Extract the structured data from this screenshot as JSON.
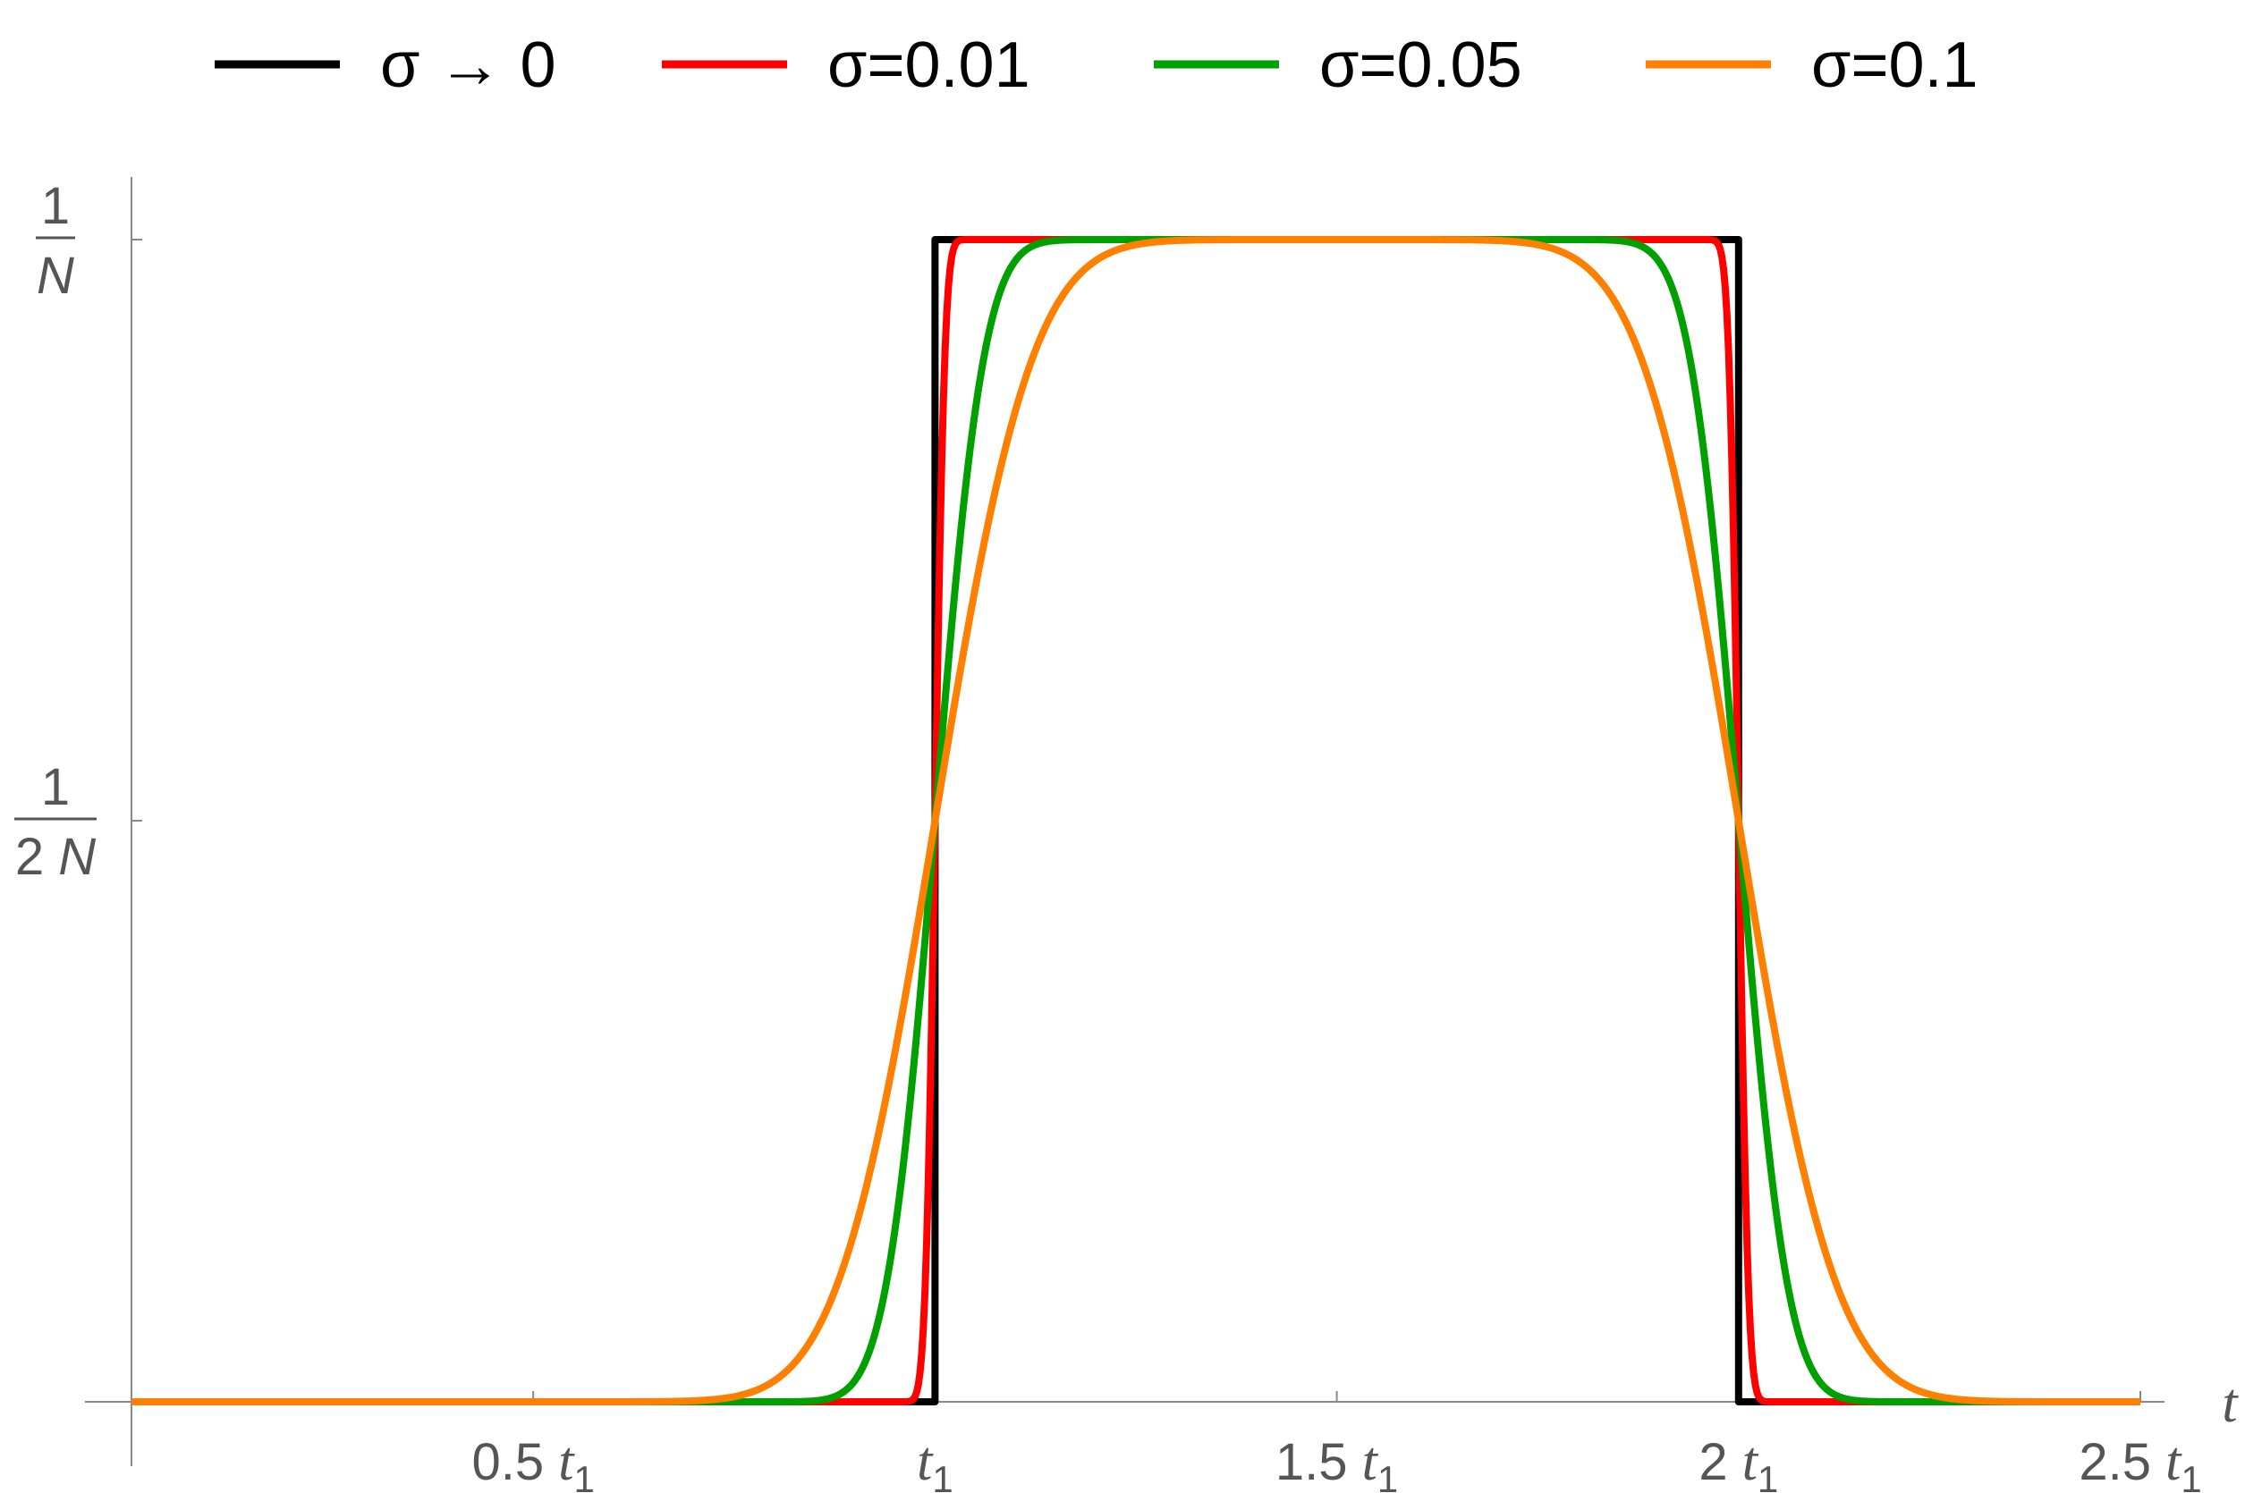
{
  "chart_data": {
    "type": "line",
    "xlabel": "t",
    "ylabel": "",
    "xlim": [
      0,
      2.5
    ],
    "ylim": [
      0,
      1
    ],
    "grid": false,
    "legend_position": "top",
    "x_ticks": [
      {
        "value": 0.5,
        "coef": "0.5",
        "var": "t",
        "sub": "1"
      },
      {
        "value": 1.0,
        "coef": "",
        "var": "t",
        "sub": "1"
      },
      {
        "value": 1.5,
        "coef": "1.5",
        "var": "t",
        "sub": "1"
      },
      {
        "value": 2.0,
        "coef": "2",
        "var": "t",
        "sub": "1"
      },
      {
        "value": 2.5,
        "coef": "2.5",
        "var": "t",
        "sub": "1"
      }
    ],
    "y_ticks": [
      {
        "value": 0.5,
        "num": "1",
        "den": "2 N"
      },
      {
        "value": 1.0,
        "num": "1",
        "den": "N"
      }
    ],
    "y_unit": "1/N",
    "x_unit": "t1",
    "series": [
      {
        "name": "σ → 0",
        "sigma": 0,
        "color": "#000000"
      },
      {
        "name": "σ=0.01",
        "sigma": 0.01,
        "color": "#ff0000"
      },
      {
        "name": "σ=0.05",
        "sigma": 0.05,
        "color": "#00a000"
      },
      {
        "name": "σ=0.1",
        "sigma": 0.1,
        "color": "#ff8000"
      }
    ],
    "pulse": {
      "start": 1.0,
      "end": 2.0,
      "height": 1.0
    }
  }
}
